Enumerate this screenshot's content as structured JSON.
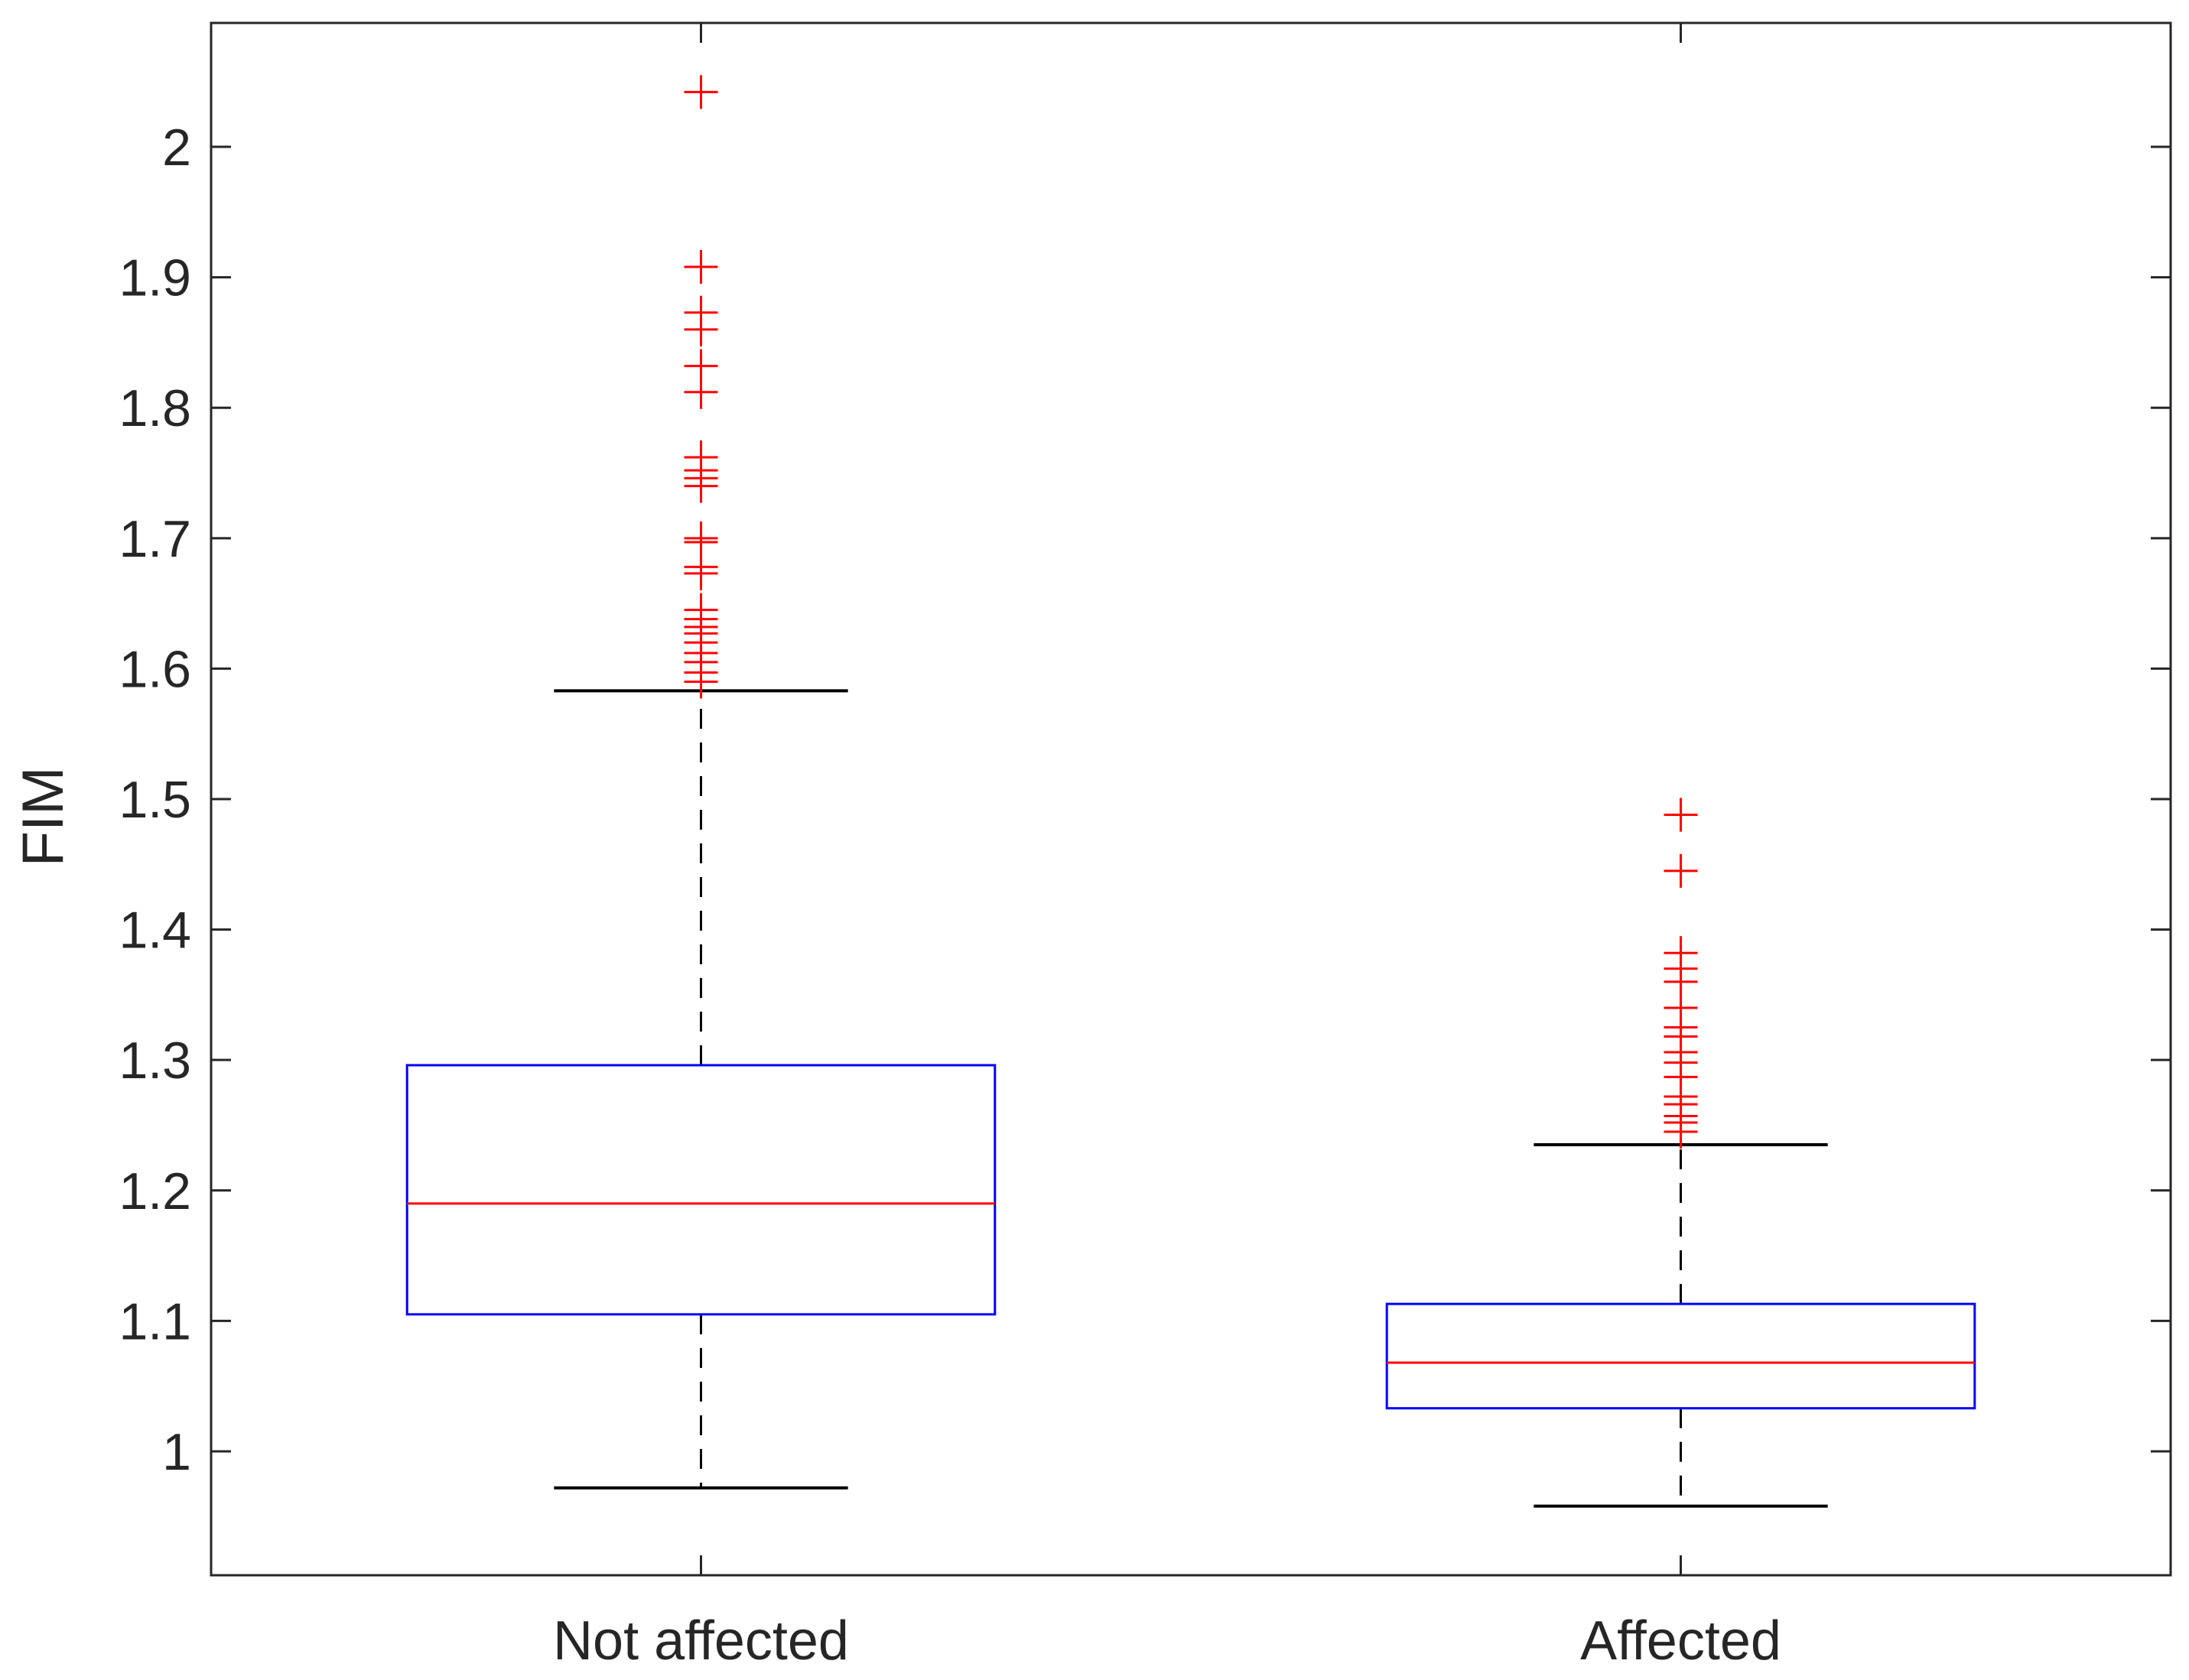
{
  "chart_data": {
    "type": "box",
    "title": "",
    "xlabel": "",
    "ylabel": "FIM",
    "ylim": [
      0.905,
      2.095
    ],
    "yticks": [
      1,
      1.1,
      1.2,
      1.3,
      1.4,
      1.5,
      1.6,
      1.7,
      1.8,
      1.9,
      2
    ],
    "ytick_labels": [
      "1",
      "1.1",
      "1.2",
      "1.3",
      "1.4",
      "1.5",
      "1.6",
      "1.7",
      "1.8",
      "1.9",
      "2"
    ],
    "grid": false,
    "categories": [
      "Not affected",
      "Affected"
    ],
    "boxes": [
      {
        "category": "Not affected",
        "whisker_low": 0.972,
        "q1": 1.105,
        "median": 1.19,
        "q3": 1.296,
        "whisker_high": 1.583,
        "outliers": [
          2.042,
          1.908,
          1.873,
          1.86,
          1.832,
          1.812,
          1.762,
          1.752,
          1.746,
          1.74,
          1.7,
          1.697,
          1.678,
          1.673,
          1.645,
          1.638,
          1.632,
          1.627,
          1.62,
          1.612,
          1.605,
          1.597,
          1.59
        ]
      },
      {
        "category": "Affected",
        "whisker_low": 0.958,
        "q1": 1.033,
        "median": 1.068,
        "q3": 1.113,
        "whisker_high": 1.235,
        "outliers": [
          1.488,
          1.445,
          1.382,
          1.37,
          1.36,
          1.34,
          1.325,
          1.318,
          1.306,
          1.298,
          1.287,
          1.272,
          1.266,
          1.257,
          1.252,
          1.245
        ]
      }
    ],
    "colors": {
      "box": "#0000ff",
      "median": "#ff0000",
      "whisker": "#000000",
      "outlier": "#ff0000",
      "axis": "#262626"
    }
  }
}
